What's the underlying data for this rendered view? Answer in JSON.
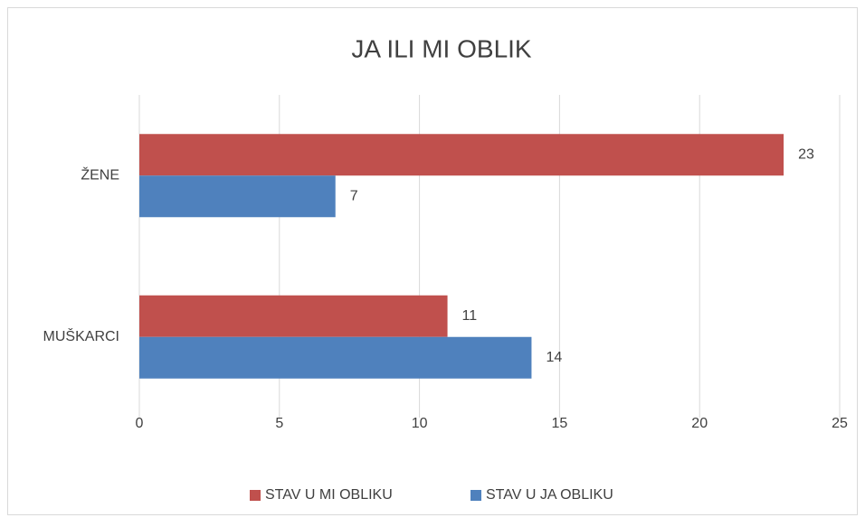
{
  "chart_data": {
    "type": "hbar",
    "title": "JA ILI MI OBLIK",
    "categories": [
      "ŽENE",
      "MUŠKARCI"
    ],
    "series": [
      {
        "name": "STAV U MI OBLIKU",
        "color": "#c0504d",
        "values": [
          23,
          11
        ]
      },
      {
        "name": "STAV U JA OBLIKU",
        "color": "#4f81bd",
        "values": [
          7,
          14
        ]
      }
    ],
    "xlim": [
      0,
      25
    ],
    "xticks": [
      0,
      5,
      10,
      15,
      20,
      25
    ],
    "grid": true,
    "legend": "bottom"
  }
}
